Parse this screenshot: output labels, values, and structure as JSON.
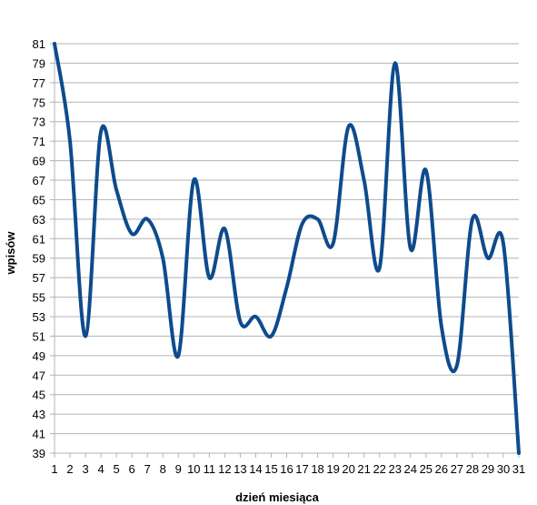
{
  "chart_data": {
    "type": "line",
    "title": "",
    "xlabel": "dzień miesiąca",
    "ylabel": "wpisów",
    "x": [
      1,
      2,
      3,
      4,
      5,
      6,
      7,
      8,
      9,
      10,
      11,
      12,
      13,
      14,
      15,
      16,
      17,
      18,
      19,
      20,
      21,
      22,
      23,
      24,
      25,
      26,
      27,
      28,
      29,
      30,
      31
    ],
    "categories": [
      "1",
      "2",
      "3",
      "4",
      "5",
      "6",
      "7",
      "8",
      "9",
      "10",
      "11",
      "12",
      "13",
      "14",
      "15",
      "16",
      "17",
      "18",
      "19",
      "20",
      "21",
      "22",
      "23",
      "24",
      "25",
      "26",
      "27",
      "28",
      "29",
      "30",
      "31"
    ],
    "series": [
      {
        "values": [
          81,
          71,
          51,
          72,
          66,
          61.5,
          63,
          59,
          49,
          67,
          57,
          62,
          52.5,
          53,
          51,
          56,
          62.5,
          63,
          60.5,
          72.5,
          67,
          58,
          79,
          60,
          68,
          52,
          48,
          63,
          59,
          60.5,
          39
        ],
        "color": "#0e4b8c"
      }
    ],
    "yticks": [
      39,
      41,
      43,
      45,
      47,
      49,
      51,
      53,
      55,
      57,
      59,
      61,
      63,
      65,
      67,
      69,
      71,
      73,
      75,
      77,
      79,
      81
    ],
    "ylim": [
      39,
      81
    ],
    "xlim": [
      1,
      31
    ],
    "grid": true,
    "legend": "none",
    "colors": {
      "line": "#0e4b8c",
      "grid": "#b3b3b3",
      "axis": "#b3b3b3"
    }
  }
}
